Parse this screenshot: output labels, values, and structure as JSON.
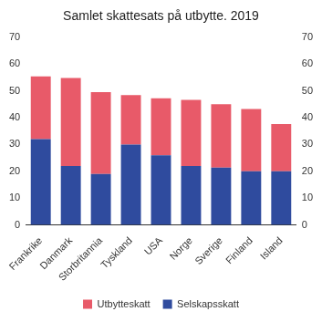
{
  "chart_data": {
    "type": "bar",
    "title": "Samlet skattesats på utbytte. 2019",
    "categories": [
      "Frankrike",
      "Danmark",
      "Storbritannia",
      "Tyskland",
      "USA",
      "Norge",
      "Sverige",
      "Finland",
      "Island"
    ],
    "series": [
      {
        "name": "Selskapsskatt",
        "color": "#2f4b9e",
        "values": [
          32,
          22,
          19,
          30,
          26,
          22,
          21.4,
          20,
          20
        ]
      },
      {
        "name": "Utbytteskatt",
        "color": "#e85a69",
        "values": [
          23.4,
          32.8,
          30.5,
          18.4,
          21.2,
          24.6,
          23.6,
          23.2,
          17.6
        ]
      }
    ],
    "stacked": true,
    "ylim": [
      0,
      70
    ],
    "yticks": [
      0,
      10,
      20,
      30,
      40,
      50,
      60,
      70
    ],
    "y2lim": [
      0,
      70
    ],
    "y2ticks": [
      0,
      10,
      20,
      30,
      40,
      50,
      60,
      70
    ],
    "grid": false,
    "legend": "bottom"
  }
}
